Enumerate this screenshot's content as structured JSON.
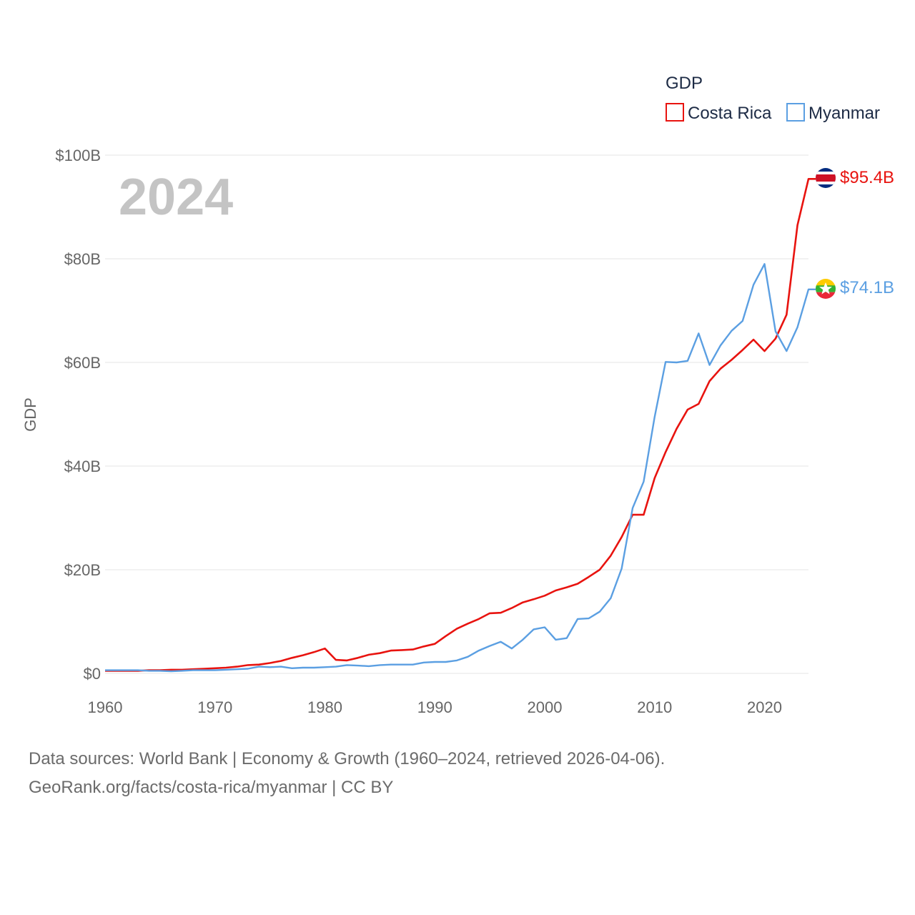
{
  "chart_data": {
    "type": "line",
    "title": "",
    "xlabel": "",
    "ylabel": "GDP",
    "year_label": "2024",
    "legend_title": "GDP",
    "xlim": [
      1960,
      2024
    ],
    "ylim": [
      0,
      100
    ],
    "x_ticks": [
      1960,
      1970,
      1980,
      1990,
      2000,
      2010,
      2020
    ],
    "y_ticks": [
      0,
      20,
      40,
      60,
      80,
      100
    ],
    "y_tick_labels": [
      "$0",
      "$20B",
      "$40B",
      "$60B",
      "$80B",
      "$100B"
    ],
    "series": [
      {
        "name": "Costa Rica",
        "color": "#e8130f",
        "end_label": "$95.4B",
        "flag": "costa-rica-flag-icon",
        "x": [
          1960,
          1961,
          1962,
          1963,
          1964,
          1965,
          1966,
          1967,
          1968,
          1969,
          1970,
          1971,
          1972,
          1973,
          1974,
          1975,
          1976,
          1977,
          1978,
          1979,
          1980,
          1981,
          1982,
          1983,
          1984,
          1985,
          1986,
          1987,
          1988,
          1989,
          1990,
          1991,
          1992,
          1993,
          1994,
          1995,
          1996,
          1997,
          1998,
          1999,
          2000,
          2001,
          2002,
          2003,
          2004,
          2005,
          2006,
          2007,
          2008,
          2009,
          2010,
          2011,
          2012,
          2013,
          2014,
          2015,
          2016,
          2017,
          2018,
          2019,
          2020,
          2021,
          2022,
          2023,
          2024
        ],
        "values": [
          0.5,
          0.5,
          0.5,
          0.5,
          0.6,
          0.6,
          0.7,
          0.7,
          0.8,
          0.9,
          1.0,
          1.1,
          1.3,
          1.6,
          1.7,
          2.0,
          2.4,
          3.0,
          3.5,
          4.1,
          4.8,
          2.6,
          2.5,
          3.0,
          3.6,
          3.9,
          4.4,
          4.5,
          4.6,
          5.2,
          5.7,
          7.2,
          8.6,
          9.6,
          10.5,
          11.6,
          11.7,
          12.6,
          13.7,
          14.3,
          15.0,
          16.0,
          16.6,
          17.3,
          18.6,
          20.0,
          22.7,
          26.3,
          30.6,
          30.6,
          37.7,
          42.7,
          47.2,
          50.9,
          52.0,
          56.4,
          58.8,
          60.5,
          62.4,
          64.4,
          62.2,
          64.6,
          69.2,
          86.5,
          95.4
        ]
      },
      {
        "name": "Myanmar",
        "color": "#5b9fe2",
        "end_label": "$74.1B",
        "flag": "myanmar-flag-icon",
        "x": [
          1960,
          1961,
          1962,
          1963,
          1964,
          1965,
          1966,
          1967,
          1968,
          1969,
          1970,
          1971,
          1972,
          1973,
          1974,
          1975,
          1976,
          1977,
          1978,
          1979,
          1980,
          1981,
          1982,
          1983,
          1984,
          1985,
          1986,
          1987,
          1988,
          1989,
          1990,
          1991,
          1992,
          1993,
          1994,
          1995,
          1996,
          1997,
          1998,
          1999,
          2000,
          2001,
          2002,
          2003,
          2004,
          2005,
          2006,
          2007,
          2008,
          2009,
          2010,
          2011,
          2012,
          2013,
          2014,
          2015,
          2016,
          2017,
          2018,
          2019,
          2020,
          2021,
          2022,
          2023,
          2024
        ],
        "values": [
          0.6,
          0.6,
          0.6,
          0.6,
          0.5,
          0.5,
          0.4,
          0.5,
          0.6,
          0.6,
          0.6,
          0.7,
          0.8,
          0.9,
          1.3,
          1.2,
          1.3,
          1.0,
          1.1,
          1.1,
          1.2,
          1.3,
          1.6,
          1.5,
          1.4,
          1.6,
          1.7,
          1.7,
          1.7,
          2.1,
          2.2,
          2.2,
          2.5,
          3.2,
          4.4,
          5.3,
          6.1,
          4.8,
          6.5,
          8.5,
          8.9,
          6.5,
          6.8,
          10.5,
          10.6,
          11.9,
          14.5,
          20.2,
          31.9,
          37.0,
          49.5,
          60.1,
          60.0,
          60.3,
          65.6,
          59.5,
          63.3,
          66.1,
          68.0,
          75.0,
          79.0,
          66.0,
          62.2,
          66.8,
          74.1
        ]
      }
    ]
  },
  "footer": {
    "line1": "Data sources: World Bank | Economy & Growth (1960–2024, retrieved 2026-04-06).",
    "line2": "GeoRank.org/facts/costa-rica/myanmar | CC BY"
  }
}
